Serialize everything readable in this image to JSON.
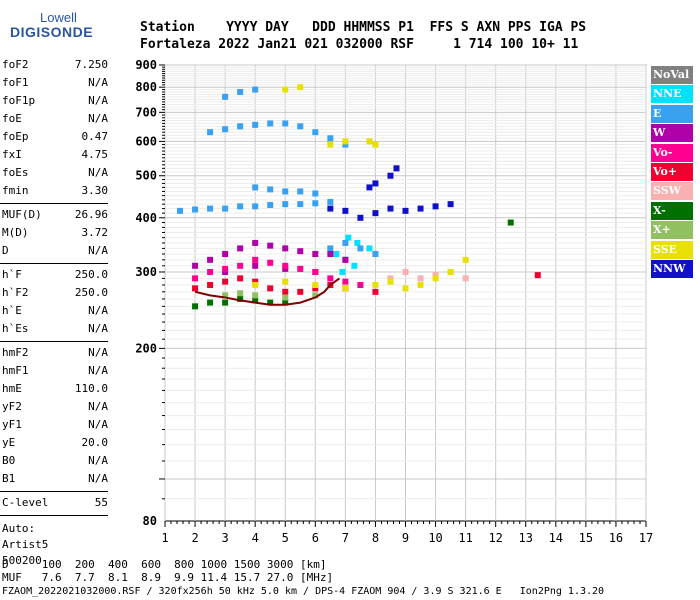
{
  "logo": {
    "line1": "Lowell",
    "line2": "DIGISONDE"
  },
  "header": {
    "row1": "Station    YYYY DAY   DDD HHMMSS P1  FFS S AXN PPS IGA PS",
    "row2": "Fortaleza 2022 Jan21 021 032000 RSF     1 714 100 10+ 11"
  },
  "params_group1": [
    {
      "k": "foF2",
      "v": "7.250"
    },
    {
      "k": "foF1",
      "v": "N/A"
    },
    {
      "k": "foF1p",
      "v": "N/A"
    },
    {
      "k": "foE",
      "v": "N/A"
    },
    {
      "k": "foEp",
      "v": "0.47"
    },
    {
      "k": "fxI",
      "v": "4.75"
    },
    {
      "k": "foEs",
      "v": "N/A"
    },
    {
      "k": "fmin",
      "v": "3.30"
    }
  ],
  "params_group2": [
    {
      "k": "MUF(D)",
      "v": "26.96"
    },
    {
      "k": "M(D)",
      "v": "3.72"
    },
    {
      "k": "D",
      "v": "N/A"
    }
  ],
  "params_group3": [
    {
      "k": "h`F",
      "v": "250.0"
    },
    {
      "k": "h`F2",
      "v": "250.0"
    },
    {
      "k": "h`E",
      "v": "N/A"
    },
    {
      "k": "h`Es",
      "v": "N/A"
    }
  ],
  "params_group4": [
    {
      "k": "hmF2",
      "v": "N/A"
    },
    {
      "k": "hmF1",
      "v": "N/A"
    },
    {
      "k": "hmE",
      "v": "110.0"
    },
    {
      "k": "yF2",
      "v": "N/A"
    },
    {
      "k": "yF1",
      "v": "N/A"
    },
    {
      "k": "yE",
      "v": "20.0"
    },
    {
      "k": "B0",
      "v": "N/A"
    },
    {
      "k": "B1",
      "v": "N/A"
    }
  ],
  "params_group5": [
    {
      "k": "C-level",
      "v": "55"
    }
  ],
  "auto": [
    "Auto:",
    "Artist5",
    "500200"
  ],
  "legend": [
    {
      "label": "NoVal",
      "color": "#808080"
    },
    {
      "label": "NNE",
      "color": "#00e0ff"
    },
    {
      "label": "E",
      "color": "#3aa0f0"
    },
    {
      "label": "W",
      "color": "#b000a8"
    },
    {
      "label": "Vo-",
      "color": "#ff0090"
    },
    {
      "label": "Vo+",
      "color": "#ee0030"
    },
    {
      "label": "SSW",
      "color": "#f8b0b0"
    },
    {
      "label": "X-",
      "color": "#007000"
    },
    {
      "label": "X+",
      "color": "#90c060"
    },
    {
      "label": "SSE",
      "color": "#e8e000"
    },
    {
      "label": "NNW",
      "color": "#1010c8"
    }
  ],
  "footer": {
    "row1": "D     100  200  400  600  800 1000 1500 3000 [km]",
    "row2": "MUF   7.6  7.7  8.1  8.9  9.9 11.4 15.7 27.0 [MHz]",
    "row3": "FZAOM_2022021032000.RSF / 320fx256h 50 kHz 5.0 km / DPS-4 FZAOM 904 / 3.9 S 321.6 E   Ion2Png 1.3.20"
  },
  "chart_data": {
    "type": "scatter",
    "title": "",
    "xlabel": "",
    "ylabel": "",
    "xlim": [
      1,
      17
    ],
    "ylim": [
      80,
      900
    ],
    "x_ticks": [
      1,
      2,
      3,
      4,
      5,
      6,
      7,
      8,
      9,
      10,
      11,
      12,
      13,
      14,
      15,
      16,
      17
    ],
    "y_ticks": [
      80,
      200,
      300,
      400,
      500,
      600,
      700,
      800,
      900
    ],
    "y_scale": "log",
    "grid": true,
    "series": [
      {
        "name": "NNE",
        "color": "#00e0ff",
        "points": [
          [
            6.7,
            330
          ],
          [
            7.1,
            360
          ],
          [
            7.4,
            350
          ],
          [
            7.8,
            340
          ],
          [
            6.9,
            300
          ],
          [
            7.3,
            310
          ]
        ]
      },
      {
        "name": "E",
        "color": "#3aa0f0",
        "points": [
          [
            1.5,
            415
          ],
          [
            2,
            418
          ],
          [
            2.5,
            420
          ],
          [
            3,
            420
          ],
          [
            3.5,
            425
          ],
          [
            4,
            425
          ],
          [
            4.5,
            428
          ],
          [
            5,
            430
          ],
          [
            5.5,
            430
          ],
          [
            6,
            432
          ],
          [
            6.5,
            435
          ],
          [
            2.5,
            630
          ],
          [
            3,
            640
          ],
          [
            3.5,
            650
          ],
          [
            4,
            655
          ],
          [
            4.5,
            660
          ],
          [
            5,
            660
          ],
          [
            5.5,
            650
          ],
          [
            6,
            630
          ],
          [
            6.5,
            610
          ],
          [
            7,
            590
          ],
          [
            4,
            470
          ],
          [
            4.5,
            465
          ],
          [
            5,
            460
          ],
          [
            5.5,
            460
          ],
          [
            6,
            455
          ],
          [
            3,
            760
          ],
          [
            3.5,
            780
          ],
          [
            4,
            790
          ],
          [
            6.5,
            340
          ],
          [
            7,
            350
          ],
          [
            7.5,
            340
          ],
          [
            8,
            330
          ],
          [
            7,
            320
          ]
        ]
      },
      {
        "name": "W",
        "color": "#b000a8",
        "points": [
          [
            2,
            310
          ],
          [
            2.5,
            320
          ],
          [
            3,
            330
          ],
          [
            3.5,
            340
          ],
          [
            4,
            350
          ],
          [
            4.5,
            345
          ],
          [
            5,
            340
          ],
          [
            5.5,
            335
          ],
          [
            6,
            330
          ],
          [
            6.5,
            330
          ],
          [
            7,
            320
          ],
          [
            3,
            300
          ],
          [
            4,
            310
          ],
          [
            5,
            305
          ],
          [
            6,
            300
          ]
        ]
      },
      {
        "name": "Vo-",
        "color": "#ff0090",
        "points": [
          [
            2,
            290
          ],
          [
            2.5,
            300
          ],
          [
            3,
            305
          ],
          [
            3.5,
            310
          ],
          [
            4,
            320
          ],
          [
            4.5,
            315
          ],
          [
            5,
            310
          ],
          [
            5.5,
            305
          ],
          [
            6,
            300
          ],
          [
            6.5,
            290
          ],
          [
            7,
            285
          ],
          [
            7.5,
            280
          ]
        ]
      },
      {
        "name": "Vo+",
        "color": "#ee0030",
        "points": [
          [
            2,
            275
          ],
          [
            2.5,
            280
          ],
          [
            3,
            285
          ],
          [
            3.5,
            290
          ],
          [
            4,
            285
          ],
          [
            4.5,
            275
          ],
          [
            5,
            270
          ],
          [
            5.5,
            270
          ],
          [
            6,
            275
          ],
          [
            6.5,
            280
          ],
          [
            7,
            275
          ],
          [
            8,
            270
          ],
          [
            13.4,
            295
          ]
        ]
      },
      {
        "name": "SSW",
        "color": "#f8b0b0",
        "points": [
          [
            8.5,
            290
          ],
          [
            9,
            300
          ],
          [
            9.5,
            290
          ],
          [
            10,
            295
          ],
          [
            10.5,
            300
          ],
          [
            11,
            290
          ]
        ]
      },
      {
        "name": "X-",
        "color": "#007000",
        "points": [
          [
            2,
            250
          ],
          [
            2.5,
            255
          ],
          [
            3,
            255
          ],
          [
            3.5,
            260
          ],
          [
            4,
            258
          ],
          [
            4.5,
            255
          ],
          [
            5,
            255
          ],
          [
            12.5,
            390
          ]
        ]
      },
      {
        "name": "X+",
        "color": "#90c060",
        "points": [
          [
            3,
            265
          ],
          [
            3.5,
            268
          ],
          [
            4,
            265
          ],
          [
            5,
            262
          ],
          [
            6,
            265
          ]
        ]
      },
      {
        "name": "SSE",
        "color": "#e8e000",
        "points": [
          [
            4,
            280
          ],
          [
            5,
            285
          ],
          [
            6,
            280
          ],
          [
            7,
            275
          ],
          [
            8,
            280
          ],
          [
            8.5,
            285
          ],
          [
            9,
            275
          ],
          [
            9.5,
            280
          ],
          [
            10,
            290
          ],
          [
            10.5,
            300
          ],
          [
            11,
            320
          ],
          [
            5,
            790
          ],
          [
            5.5,
            800
          ],
          [
            6.5,
            590
          ],
          [
            7,
            600
          ],
          [
            7.8,
            600
          ],
          [
            8,
            590
          ]
        ]
      },
      {
        "name": "NNW",
        "color": "#1010c8",
        "points": [
          [
            7.5,
            400
          ],
          [
            8,
            410
          ],
          [
            8.5,
            420
          ],
          [
            9,
            415
          ],
          [
            9.5,
            420
          ],
          [
            10,
            425
          ],
          [
            10.5,
            430
          ],
          [
            7.8,
            470
          ],
          [
            8,
            480
          ],
          [
            8.5,
            500
          ],
          [
            8.7,
            520
          ],
          [
            6.5,
            420
          ],
          [
            7,
            415
          ]
        ]
      }
    ],
    "trace": {
      "name": "",
      "color": "#800000",
      "points": [
        [
          2,
          270
        ],
        [
          2.5,
          265
        ],
        [
          3,
          262
        ],
        [
          3.5,
          258
        ],
        [
          4,
          255
        ],
        [
          4.5,
          252
        ],
        [
          5,
          252
        ],
        [
          5.5,
          255
        ],
        [
          6,
          262
        ],
        [
          6.3,
          270
        ],
        [
          6.5,
          280
        ],
        [
          6.8,
          290
        ]
      ]
    }
  }
}
